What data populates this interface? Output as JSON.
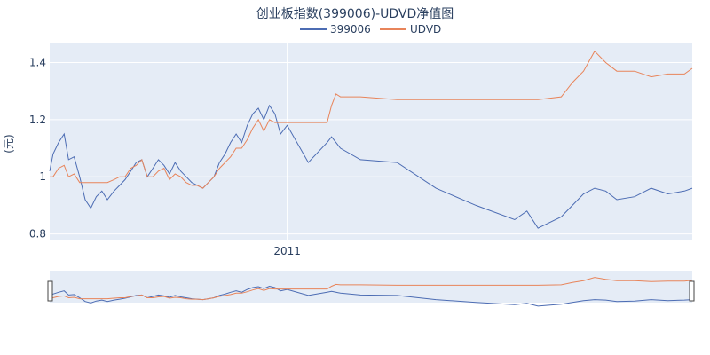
{
  "chart_data": {
    "type": "line",
    "title": "创业板指数(399006)-UDVD净值图",
    "ylabel": "(元)",
    "xlabel": "",
    "x_tick_labels": [
      "2011"
    ],
    "y_ticks": [
      0.8,
      1,
      1.2,
      1.4
    ],
    "y_tick_labels": [
      "0.8",
      "1",
      "1.2",
      "1.4"
    ],
    "ylim": [
      0.78,
      1.47
    ],
    "legend_position": "top-center",
    "grid": true,
    "x": [
      "2010-06-01",
      "2010-06-04",
      "2010-06-09",
      "2010-06-14",
      "2010-06-18",
      "2010-06-23",
      "2010-06-28",
      "2010-07-03",
      "2010-07-08",
      "2010-07-13",
      "2010-07-18",
      "2010-07-23",
      "2010-07-29",
      "2010-08-03",
      "2010-08-08",
      "2010-08-13",
      "2010-08-18",
      "2010-08-23",
      "2010-08-28",
      "2010-09-02",
      "2010-09-07",
      "2010-09-12",
      "2010-09-17",
      "2010-09-22",
      "2010-09-27",
      "2010-10-02",
      "2010-10-07",
      "2010-10-12",
      "2010-10-17",
      "2010-10-22",
      "2010-10-27",
      "2010-11-01",
      "2010-11-06",
      "2010-11-11",
      "2010-11-16",
      "2010-11-21",
      "2010-11-26",
      "2010-12-01",
      "2010-12-06",
      "2010-12-11",
      "2010-12-16",
      "2010-12-21",
      "2010-12-26",
      "2011-01-01",
      "2011-01-20",
      "2011-02-06",
      "2011-02-10",
      "2011-02-14",
      "2011-02-18",
      "2011-03-08",
      "2011-04-10",
      "2011-05-15",
      "2011-06-20",
      "2011-07-25",
      "2011-08-05",
      "2011-08-15",
      "2011-09-05",
      "2011-09-15",
      "2011-09-25",
      "2011-10-05",
      "2011-10-15",
      "2011-10-25",
      "2011-11-10",
      "2011-11-25",
      "2011-12-10",
      "2011-12-25",
      "2012-01-01"
    ],
    "series": [
      {
        "name": "399006",
        "color": "#4c6cb3",
        "values": [
          1.02,
          1.08,
          1.12,
          1.15,
          1.06,
          1.07,
          1.0,
          0.92,
          0.89,
          0.93,
          0.95,
          0.92,
          0.95,
          0.97,
          0.99,
          1.02,
          1.05,
          1.06,
          1.0,
          1.03,
          1.06,
          1.04,
          1.01,
          1.05,
          1.02,
          1.0,
          0.98,
          0.97,
          0.96,
          0.98,
          1.0,
          1.05,
          1.08,
          1.12,
          1.15,
          1.12,
          1.18,
          1.22,
          1.24,
          1.2,
          1.25,
          1.22,
          1.15,
          1.18,
          1.05,
          1.12,
          1.14,
          1.12,
          1.1,
          1.06,
          1.05,
          0.96,
          0.9,
          0.85,
          0.88,
          0.82,
          0.86,
          0.9,
          0.94,
          0.96,
          0.95,
          0.92,
          0.93,
          0.96,
          0.94,
          0.95,
          0.96
        ]
      },
      {
        "name": "UDVD",
        "color": "#e8845a",
        "values": [
          1.0,
          1.0,
          1.03,
          1.04,
          1.0,
          1.01,
          0.98,
          0.98,
          0.98,
          0.98,
          0.98,
          0.98,
          0.99,
          1.0,
          1.0,
          1.03,
          1.04,
          1.06,
          1.0,
          1.0,
          1.02,
          1.03,
          0.99,
          1.01,
          1.0,
          0.98,
          0.97,
          0.97,
          0.96,
          0.98,
          1.0,
          1.03,
          1.05,
          1.07,
          1.1,
          1.1,
          1.13,
          1.17,
          1.2,
          1.16,
          1.2,
          1.19,
          1.19,
          1.19,
          1.19,
          1.19,
          1.25,
          1.29,
          1.28,
          1.28,
          1.27,
          1.27,
          1.27,
          1.27,
          1.27,
          1.27,
          1.28,
          1.33,
          1.37,
          1.44,
          1.4,
          1.37,
          1.37,
          1.35,
          1.36,
          1.36,
          1.38
        ]
      }
    ]
  }
}
